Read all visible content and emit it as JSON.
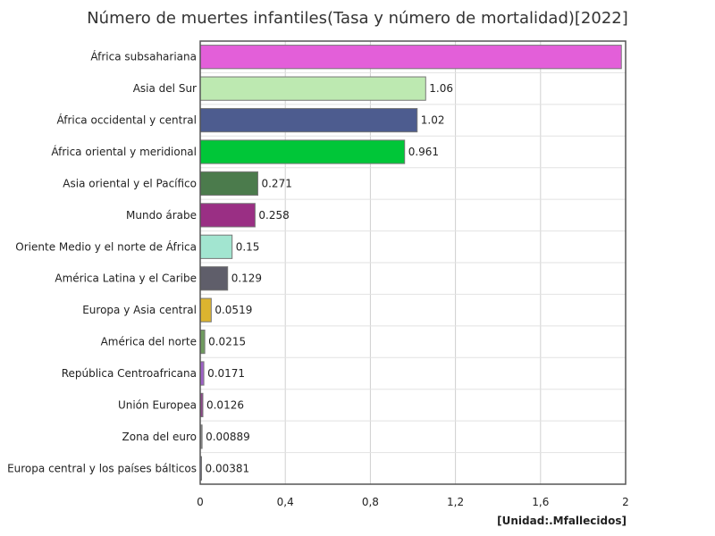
{
  "chart_data": {
    "type": "bar",
    "orientation": "horizontal",
    "title": "Número de muertes infantiles(Tasa y número de mortalidad)[2022]",
    "unit_label": "[Unidad:.Mfallecidos]",
    "xlim": [
      0,
      2
    ],
    "x_ticks": [
      "0",
      "0,4",
      "0,8",
      "1,2",
      "1,6",
      "2"
    ],
    "x_tick_values": [
      0,
      0.4,
      0.8,
      1.2,
      1.6,
      2
    ],
    "grid": true,
    "categories": [
      "África subsahariana",
      "Asia del Sur",
      "África occidental y central",
      "África oriental y meridional",
      "Asia oriental y el Pacífico",
      "Mundo árabe",
      "Oriente Medio y el norte de África",
      "América Latina y el Caribe",
      "Europa y Asia central",
      "América del norte",
      "República Centroafricana",
      "Unión Europea",
      "Zona del euro",
      "Europa central y los países bálticos"
    ],
    "values": [
      1.98,
      1.06,
      1.02,
      0.961,
      0.271,
      0.258,
      0.15,
      0.129,
      0.0519,
      0.0215,
      0.0171,
      0.0126,
      0.00889,
      0.00381
    ],
    "data_labels": [
      "",
      "1.06",
      "1.02",
      "0.961",
      "0.271",
      "0.258",
      "0.15",
      "0.129",
      "0.0519",
      "0.0215",
      "0.0171",
      "0.0126",
      "0.00889",
      "0.00381"
    ],
    "colors": [
      "#e35fd9",
      "#bde9b1",
      "#4d5c8f",
      "#00c638",
      "#4b7b4c",
      "#9a2f84",
      "#a2e5d0",
      "#5f5e6a",
      "#dcb42f",
      "#6f9b5f",
      "#9f61c7",
      "#8f4a8c",
      "#8c8c8c",
      "#a7a7c8"
    ]
  }
}
